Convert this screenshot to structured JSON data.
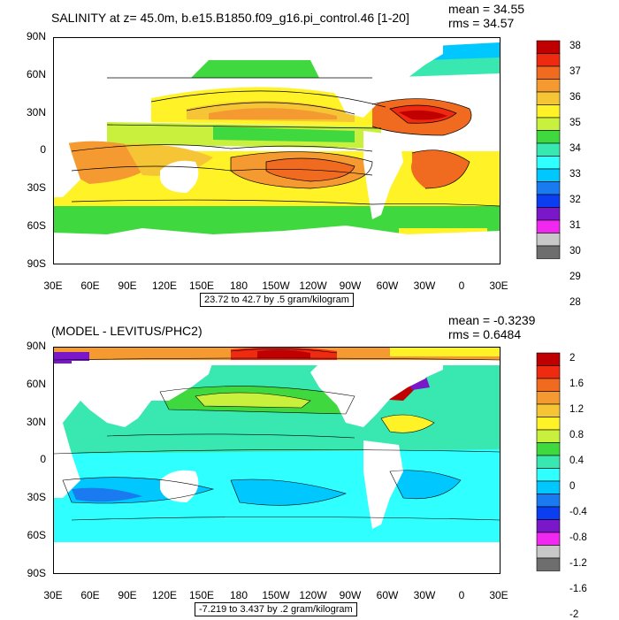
{
  "panels": [
    {
      "title": "SALINITY at z=  45.0m, b.e15.B1850.f09_g16.pi_control.46 [1-20]",
      "mean": "mean = 34.55",
      "rms": "rms = 34.57",
      "caption": "23.72 to 42.7 by .5 gram/kilogram",
      "lat_labels": [
        "90N",
        "60N",
        "30N",
        "0",
        "30S",
        "60S",
        "90S"
      ],
      "lon_labels": [
        "30E",
        "60E",
        "90E",
        "120E",
        "150E",
        "180",
        "150W",
        "120W",
        "90W",
        "60W",
        "30W",
        "0",
        "30E"
      ],
      "colorbar": {
        "labels": [
          "38",
          "37",
          "36",
          "35",
          "34",
          "33",
          "32",
          "31",
          "30",
          "29",
          "28"
        ],
        "colors": [
          "#c00000",
          "#ee2a10",
          "#f06a20",
          "#f59a30",
          "#f5c535",
          "#fff227",
          "#c8f03c",
          "#3fd93f",
          "#38e8b0",
          "#30ffff",
          "#00c8ff",
          "#1a7af0",
          "#0a3ef0",
          "#7a17c8",
          "#f028f0",
          "#c8c8c8",
          "#6e6e6e"
        ]
      }
    },
    {
      "title": "(MODEL - LEVITUS/PHC2)",
      "mean": "mean = -0.3239",
      "rms": "rms = 0.6484",
      "caption": "-7.219 to 3.437 by .2 gram/kilogram",
      "lat_labels": [
        "90N",
        "60N",
        "30N",
        "0",
        "30S",
        "60S",
        "90S"
      ],
      "lon_labels": [
        "30E",
        "60E",
        "90E",
        "120E",
        "150E",
        "180",
        "150W",
        "120W",
        "90W",
        "60W",
        "30W",
        "0",
        "30E"
      ],
      "colorbar": {
        "labels": [
          "2",
          "1.6",
          "1.2",
          "0.8",
          "0.4",
          "0",
          "-0.4",
          "-0.8",
          "-1.2",
          "-1.6",
          "-2"
        ],
        "colors": [
          "#c00000",
          "#ee2a10",
          "#f06a20",
          "#f59a30",
          "#f5c535",
          "#fff227",
          "#c8f03c",
          "#3fd93f",
          "#38e8b0",
          "#30ffff",
          "#00c8ff",
          "#1a7af0",
          "#0a3ef0",
          "#7a17c8",
          "#f028f0",
          "#c8c8c8",
          "#6e6e6e"
        ]
      }
    }
  ]
}
